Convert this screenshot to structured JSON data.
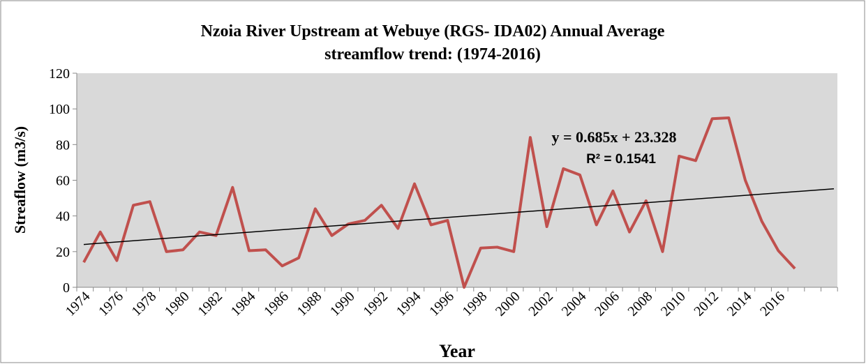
{
  "chart_data": {
    "type": "line",
    "title": [
      "Nzoia River Upstream at Webuye (RGS- IDA02) Annual Average",
      "streamflow trend: (1974-2016)"
    ],
    "x_label": "Year",
    "y_label": "Streaflow (m3/s)",
    "categories": [
      "1974",
      null,
      "1976",
      null,
      "1978",
      null,
      "1980",
      null,
      "1982",
      null,
      "1984",
      null,
      "1986",
      null,
      "1988",
      null,
      "1990",
      null,
      "1992",
      null,
      "1994",
      null,
      "1996",
      null,
      "1998",
      null,
      "2000",
      null,
      "2002",
      null,
      "2004",
      null,
      "2006",
      null,
      "2008",
      null,
      "2010",
      null,
      "2012",
      null,
      "2014",
      null,
      "2016",
      null
    ],
    "series": [
      {
        "name": "Streamflow",
        "color": "#c0504d",
        "values": [
          14,
          31,
          15,
          46,
          48,
          20,
          21,
          31,
          29,
          56,
          20.5,
          21,
          12,
          16.5,
          44,
          29,
          35.5,
          37.5,
          46,
          33,
          58,
          35,
          37.5,
          0,
          22,
          22.5,
          20,
          84,
          34,
          66.5,
          63,
          35,
          54,
          31,
          48.5,
          20,
          73.5,
          71,
          94.5,
          95,
          60,
          37,
          20.5,
          10.5
        ]
      }
    ],
    "trendline": {
      "equation": "y = 0.685x + 23.328",
      "r2": "R² = 0.1541",
      "slope": 0.685,
      "intercept": 23.328,
      "color": "#000000"
    },
    "ylim": [
      0,
      120
    ],
    "yticks": [
      0,
      20,
      40,
      60,
      80,
      100,
      120
    ],
    "grid": false
  }
}
